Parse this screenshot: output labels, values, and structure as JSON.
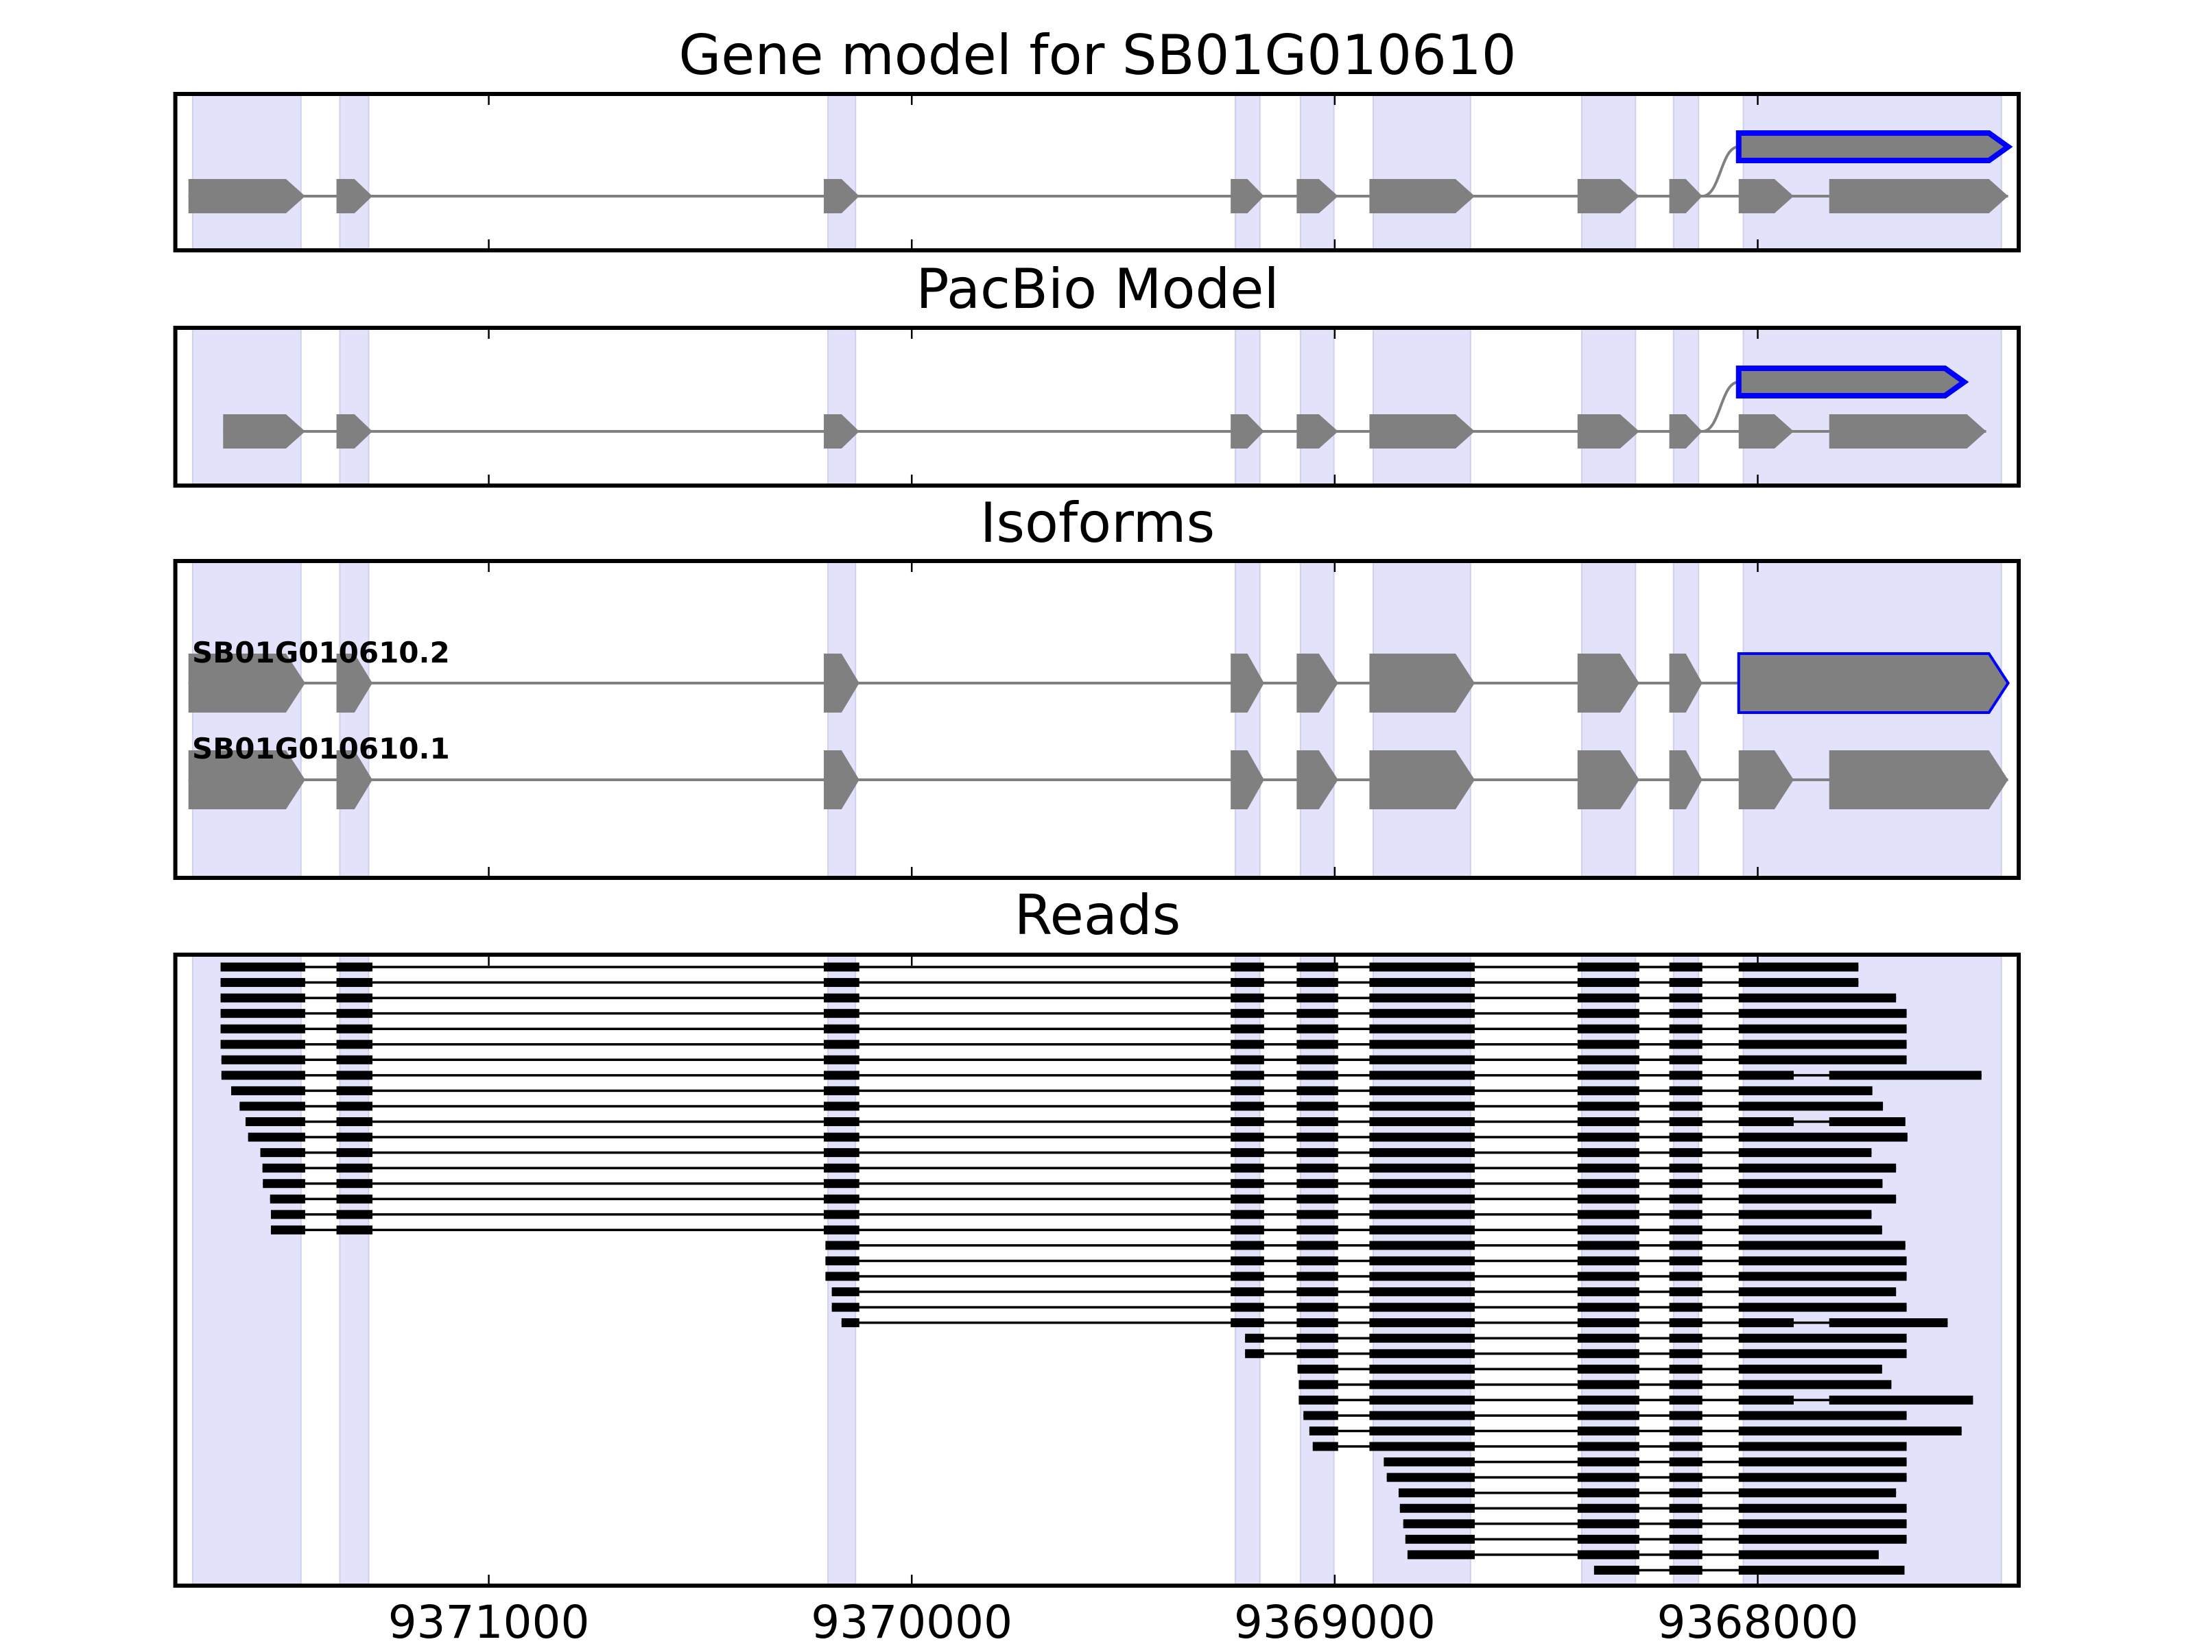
{
  "titles": {
    "gene_model": "Gene model for SB01G010610",
    "pacbio": "PacBio Model",
    "isoforms": "Isoforms",
    "reads": "Reads"
  },
  "chart_data": {
    "type": "gene-track",
    "xlim": [
      9371741,
      9367383
    ],
    "x_reversed": true,
    "xticks": [
      "9371000",
      "9370000",
      "9369000",
      "9368000"
    ],
    "colors": {
      "exon": "#808080",
      "alt_exon_outline": "#0000ff",
      "highlight": "#e2e2fb",
      "read": "#000000",
      "frame": "#000000"
    },
    "highlight_regions": [
      [
        9371700,
        9371444
      ],
      [
        9371352,
        9371284
      ],
      [
        9370198,
        9370133
      ],
      [
        9369235,
        9369177
      ],
      [
        9369081,
        9369002
      ],
      [
        9368909,
        9368679
      ],
      [
        9368416,
        9368289
      ],
      [
        9368199,
        9368140
      ],
      [
        9368034,
        9367424
      ]
    ],
    "gene_model": {
      "exons": [
        [
          9371710,
          9371434
        ],
        [
          9371360,
          9371275
        ],
        [
          9370208,
          9370124
        ],
        [
          9369246,
          9369167
        ],
        [
          9369090,
          9368992
        ],
        [
          9368918,
          9368669
        ],
        [
          9368426,
          9368280
        ],
        [
          9368209,
          9368131
        ],
        [
          9368045,
          9367915
        ],
        [
          9367831,
          9367408
        ]
      ],
      "alt_exon": [
        9368045,
        9367408
      ]
    },
    "pacbio": {
      "exons": [
        [
          9371628,
          9371434
        ],
        [
          9371360,
          9371275
        ],
        [
          9370208,
          9370124
        ],
        [
          9369246,
          9369167
        ],
        [
          9369090,
          9368992
        ],
        [
          9368918,
          9368669
        ],
        [
          9368426,
          9368280
        ],
        [
          9368209,
          9368131
        ],
        [
          9368045,
          9367915
        ],
        [
          9367831,
          9367460
        ]
      ],
      "alt_exon": [
        9368045,
        9367512
      ]
    },
    "isoforms": [
      {
        "name": "SB01G010610.2",
        "highlight_last": true,
        "exons": [
          [
            9371710,
            9371434
          ],
          [
            9371360,
            9371275
          ],
          [
            9370208,
            9370124
          ],
          [
            9369246,
            9369167
          ],
          [
            9369090,
            9368992
          ],
          [
            9368918,
            9368669
          ],
          [
            9368426,
            9368280
          ],
          [
            9368209,
            9368131
          ],
          [
            9368045,
            9367408
          ]
        ]
      },
      {
        "name": "SB01G010610.1",
        "highlight_last": false,
        "exons": [
          [
            9371710,
            9371434
          ],
          [
            9371360,
            9371275
          ],
          [
            9370208,
            9370124
          ],
          [
            9369246,
            9369167
          ],
          [
            9369090,
            9368992
          ],
          [
            9368918,
            9368669
          ],
          [
            9368426,
            9368280
          ],
          [
            9368209,
            9368131
          ],
          [
            9368045,
            9367915
          ],
          [
            9367831,
            9367408
          ]
        ]
      }
    ],
    "reads": [
      {
        "start": 9371634,
        "end": 9367762,
        "isoform": 2
      },
      {
        "start": 9371634,
        "end": 9367762,
        "isoform": 2
      },
      {
        "start": 9371634,
        "end": 9367673,
        "isoform": 2
      },
      {
        "start": 9371634,
        "end": 9367648,
        "isoform": 2
      },
      {
        "start": 9371634,
        "end": 9367648,
        "isoform": 2
      },
      {
        "start": 9371634,
        "end": 9367648,
        "isoform": 2
      },
      {
        "start": 9371632,
        "end": 9367648,
        "isoform": 2
      },
      {
        "start": 9371632,
        "end": 9367471,
        "isoform": 1
      },
      {
        "start": 9371609,
        "end": 9367729,
        "isoform": 2
      },
      {
        "start": 9371589,
        "end": 9367704,
        "isoform": 2
      },
      {
        "start": 9371575,
        "end": 9367651,
        "isoform": 1
      },
      {
        "start": 9371569,
        "end": 9367646,
        "isoform": 2
      },
      {
        "start": 9371540,
        "end": 9367731,
        "isoform": 2
      },
      {
        "start": 9371535,
        "end": 9367673,
        "isoform": 2
      },
      {
        "start": 9371534,
        "end": 9367705,
        "isoform": 2
      },
      {
        "start": 9371517,
        "end": 9367673,
        "isoform": 2
      },
      {
        "start": 9371515,
        "end": 9367731,
        "isoform": 2
      },
      {
        "start": 9371515,
        "end": 9367706,
        "isoform": 2
      },
      {
        "start": 9370204,
        "end": 9367651,
        "isoform": 2
      },
      {
        "start": 9370204,
        "end": 9367648,
        "isoform": 2
      },
      {
        "start": 9370204,
        "end": 9367648,
        "isoform": 2
      },
      {
        "start": 9370189,
        "end": 9367673,
        "isoform": 2
      },
      {
        "start": 9370189,
        "end": 9367648,
        "isoform": 2
      },
      {
        "start": 9370166,
        "end": 9367551,
        "isoform": 1
      },
      {
        "start": 9369212,
        "end": 9367648,
        "isoform": 2
      },
      {
        "start": 9369212,
        "end": 9367648,
        "isoform": 2
      },
      {
        "start": 9369088,
        "end": 9367706,
        "isoform": 2
      },
      {
        "start": 9369085,
        "end": 9367684,
        "isoform": 2
      },
      {
        "start": 9369085,
        "end": 9367491,
        "isoform": 1
      },
      {
        "start": 9369074,
        "end": 9367648,
        "isoform": 2
      },
      {
        "start": 9369060,
        "end": 9367518,
        "isoform": 2
      },
      {
        "start": 9369052,
        "end": 9367648,
        "isoform": 2
      },
      {
        "start": 9368884,
        "end": 9367648,
        "isoform": 2
      },
      {
        "start": 9368877,
        "end": 9367648,
        "isoform": 2
      },
      {
        "start": 9368849,
        "end": 9367673,
        "isoform": 2
      },
      {
        "start": 9368846,
        "end": 9367648,
        "isoform": 2
      },
      {
        "start": 9368838,
        "end": 9367648,
        "isoform": 2
      },
      {
        "start": 9368833,
        "end": 9367648,
        "isoform": 2
      },
      {
        "start": 9368828,
        "end": 9367714,
        "isoform": 2
      },
      {
        "start": 9368387,
        "end": 9367653,
        "isoform": 2
      }
    ]
  }
}
